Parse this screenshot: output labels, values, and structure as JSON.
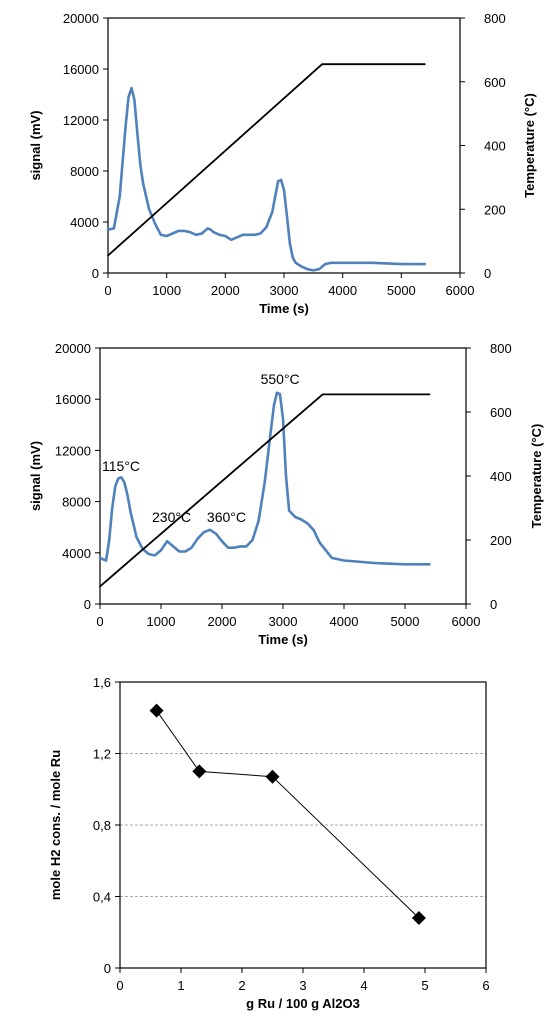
{
  "colors": {
    "signal": "#4f81bd",
    "temperature": "#000000",
    "frame": "#000000",
    "grid": "#8c8c8c",
    "marker": "#000000"
  },
  "chart_data": [
    {
      "type": "line",
      "xlabel": "Time (s)",
      "ylabel": "signal (mV)",
      "y2label": "Temperature (°C)",
      "xlim": [
        0,
        6000
      ],
      "ylim": [
        0,
        20000
      ],
      "y2lim": [
        0,
        800
      ],
      "xticks": [
        "0",
        "1000",
        "2000",
        "3000",
        "4000",
        "5000",
        "6000"
      ],
      "yticks": [
        "0",
        "4000",
        "8000",
        "12000",
        "16000",
        "20000"
      ],
      "y2ticks": [
        "0",
        "200",
        "400",
        "600",
        "800"
      ],
      "grid": false,
      "series": [
        {
          "axis": "left",
          "x": [
            0,
            100,
            200,
            300,
            350,
            400,
            450,
            500,
            550,
            600,
            700,
            800,
            900,
            1000,
            1100,
            1200,
            1300,
            1400,
            1500,
            1600,
            1700,
            1750,
            1800,
            1900,
            2000,
            2100,
            2200,
            2300,
            2400,
            2500,
            2600,
            2700,
            2800,
            2850,
            2900,
            2950,
            3000,
            3050,
            3100,
            3150,
            3200,
            3300,
            3400,
            3500,
            3600,
            3700,
            3800,
            4000,
            4500,
            5000,
            5400
          ],
          "y": [
            3400,
            3500,
            6000,
            11500,
            13800,
            14500,
            13600,
            11000,
            8500,
            7000,
            5000,
            3900,
            3000,
            2900,
            3100,
            3300,
            3300,
            3200,
            3000,
            3100,
            3500,
            3400,
            3200,
            3000,
            2900,
            2600,
            2800,
            3000,
            3000,
            3000,
            3100,
            3600,
            4800,
            6000,
            7200,
            7300,
            6500,
            4500,
            2300,
            1200,
            800,
            500,
            300,
            200,
            300,
            700,
            800,
            800,
            800,
            700,
            700
          ]
        },
        {
          "axis": "right",
          "x": [
            0,
            3650,
            5400
          ],
          "y": [
            55,
            655,
            655
          ]
        }
      ]
    },
    {
      "type": "line",
      "xlabel": "Time (s)",
      "ylabel": "signal (mV)",
      "y2label": "Temperature (°C)",
      "xlim": [
        0,
        6000
      ],
      "ylim": [
        0,
        20000
      ],
      "y2lim": [
        0,
        800
      ],
      "xticks": [
        "0",
        "1000",
        "2000",
        "3000",
        "4000",
        "5000",
        "6000"
      ],
      "yticks": [
        "0",
        "4000",
        "8000",
        "12000",
        "16000",
        "20000"
      ],
      "y2ticks": [
        "0",
        "200",
        "400",
        "600",
        "800"
      ],
      "grid": false,
      "annotations": [
        {
          "text": "115°C",
          "x": 0,
          "y": 10400
        },
        {
          "text": "230°C",
          "x": 820,
          "y": 6400
        },
        {
          "text": "360°C",
          "x": 1720,
          "y": 6400
        },
        {
          "text": "550°C",
          "x": 2600,
          "y": 17200
        }
      ],
      "series": [
        {
          "axis": "left",
          "x": [
            0,
            100,
            150,
            200,
            250,
            300,
            350,
            400,
            450,
            500,
            600,
            700,
            800,
            900,
            1000,
            1100,
            1200,
            1300,
            1400,
            1500,
            1600,
            1700,
            1800,
            1900,
            2000,
            2100,
            2200,
            2300,
            2400,
            2500,
            2600,
            2700,
            2800,
            2850,
            2900,
            2950,
            3000,
            3050,
            3100,
            3200,
            3300,
            3400,
            3500,
            3600,
            3700,
            3800,
            4000,
            4500,
            5000,
            5400
          ],
          "y": [
            3600,
            3400,
            5000,
            7500,
            9200,
            9800,
            9900,
            9500,
            8500,
            7200,
            5200,
            4300,
            3900,
            3800,
            4200,
            4900,
            4500,
            4100,
            4100,
            4400,
            5100,
            5600,
            5800,
            5500,
            4900,
            4400,
            4400,
            4500,
            4500,
            5000,
            6500,
            9500,
            13500,
            15500,
            16500,
            16400,
            14500,
            10000,
            7300,
            6800,
            6600,
            6300,
            5800,
            4800,
            4200,
            3600,
            3400,
            3200,
            3100,
            3100
          ]
        },
        {
          "axis": "right",
          "x": [
            0,
            3650,
            5400
          ],
          "y": [
            55,
            655,
            655
          ]
        }
      ]
    },
    {
      "type": "scatter",
      "xlabel": "g Ru / 100 g Al2O3",
      "ylabel": "mole H2 cons. / mole Ru",
      "xlim": [
        0,
        6
      ],
      "ylim": [
        0,
        1.6
      ],
      "xticks": [
        "0",
        "1",
        "2",
        "3",
        "4",
        "5",
        "6"
      ],
      "yticks": [
        "0",
        "0,4",
        "0,8",
        "1,2",
        "1,6"
      ],
      "grid": true,
      "x": [
        0.6,
        1.3,
        2.5,
        4.9
      ],
      "y": [
        1.44,
        1.1,
        1.07,
        0.28
      ]
    }
  ]
}
